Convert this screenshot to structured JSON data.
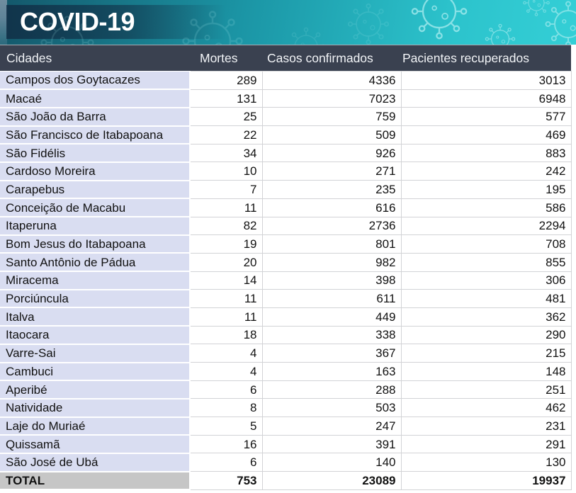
{
  "banner": {
    "title": "COVID-19"
  },
  "colors": {
    "banner_dark": "#14576a",
    "banner_mid": "#1b95a5",
    "banner_light": "#2cc3cc",
    "header_bg": "#3a4150",
    "header_text": "#f2f4f7",
    "city_cell_bg": "#d9ddf1",
    "total_cell_bg": "#c6c6c6",
    "grid_line": "#d2d3d6",
    "virus_outline": "#a9ecef"
  },
  "chart_data": {
    "type": "table",
    "title": "COVID-19",
    "columns": [
      "Cidades",
      "Mortes",
      "Casos confirmados",
      "Pacientes recuperados"
    ],
    "rows": [
      [
        "Campos dos Goytacazes",
        289,
        4336,
        3013
      ],
      [
        "Macaé",
        131,
        7023,
        6948
      ],
      [
        "São João da Barra",
        25,
        759,
        577
      ],
      [
        "São Francisco de Itabapoana",
        22,
        509,
        469
      ],
      [
        "São Fidélis",
        34,
        926,
        883
      ],
      [
        "Cardoso Moreira",
        10,
        271,
        242
      ],
      [
        "Carapebus",
        7,
        235,
        195
      ],
      [
        "Conceição de Macabu",
        11,
        616,
        586
      ],
      [
        "Itaperuna",
        82,
        2736,
        2294
      ],
      [
        "Bom Jesus do Itabapoana",
        19,
        801,
        708
      ],
      [
        "Santo Antônio de Pádua",
        20,
        982,
        855
      ],
      [
        "Miracema",
        14,
        398,
        306
      ],
      [
        "Porciúncula",
        11,
        611,
        481
      ],
      [
        "Italva",
        11,
        449,
        362
      ],
      [
        "Itaocara",
        18,
        338,
        290
      ],
      [
        "Varre-Sai",
        4,
        367,
        215
      ],
      [
        "Cambuci",
        4,
        163,
        148
      ],
      [
        "Aperibé",
        6,
        288,
        251
      ],
      [
        "Natividade",
        8,
        503,
        462
      ],
      [
        "Laje do Muriaé",
        5,
        247,
        231
      ],
      [
        "Quissamã",
        16,
        391,
        291
      ],
      [
        "São José de Ubá",
        6,
        140,
        130
      ]
    ],
    "total_label": "TOTAL",
    "totals": [
      753,
      23089,
      19937
    ]
  }
}
